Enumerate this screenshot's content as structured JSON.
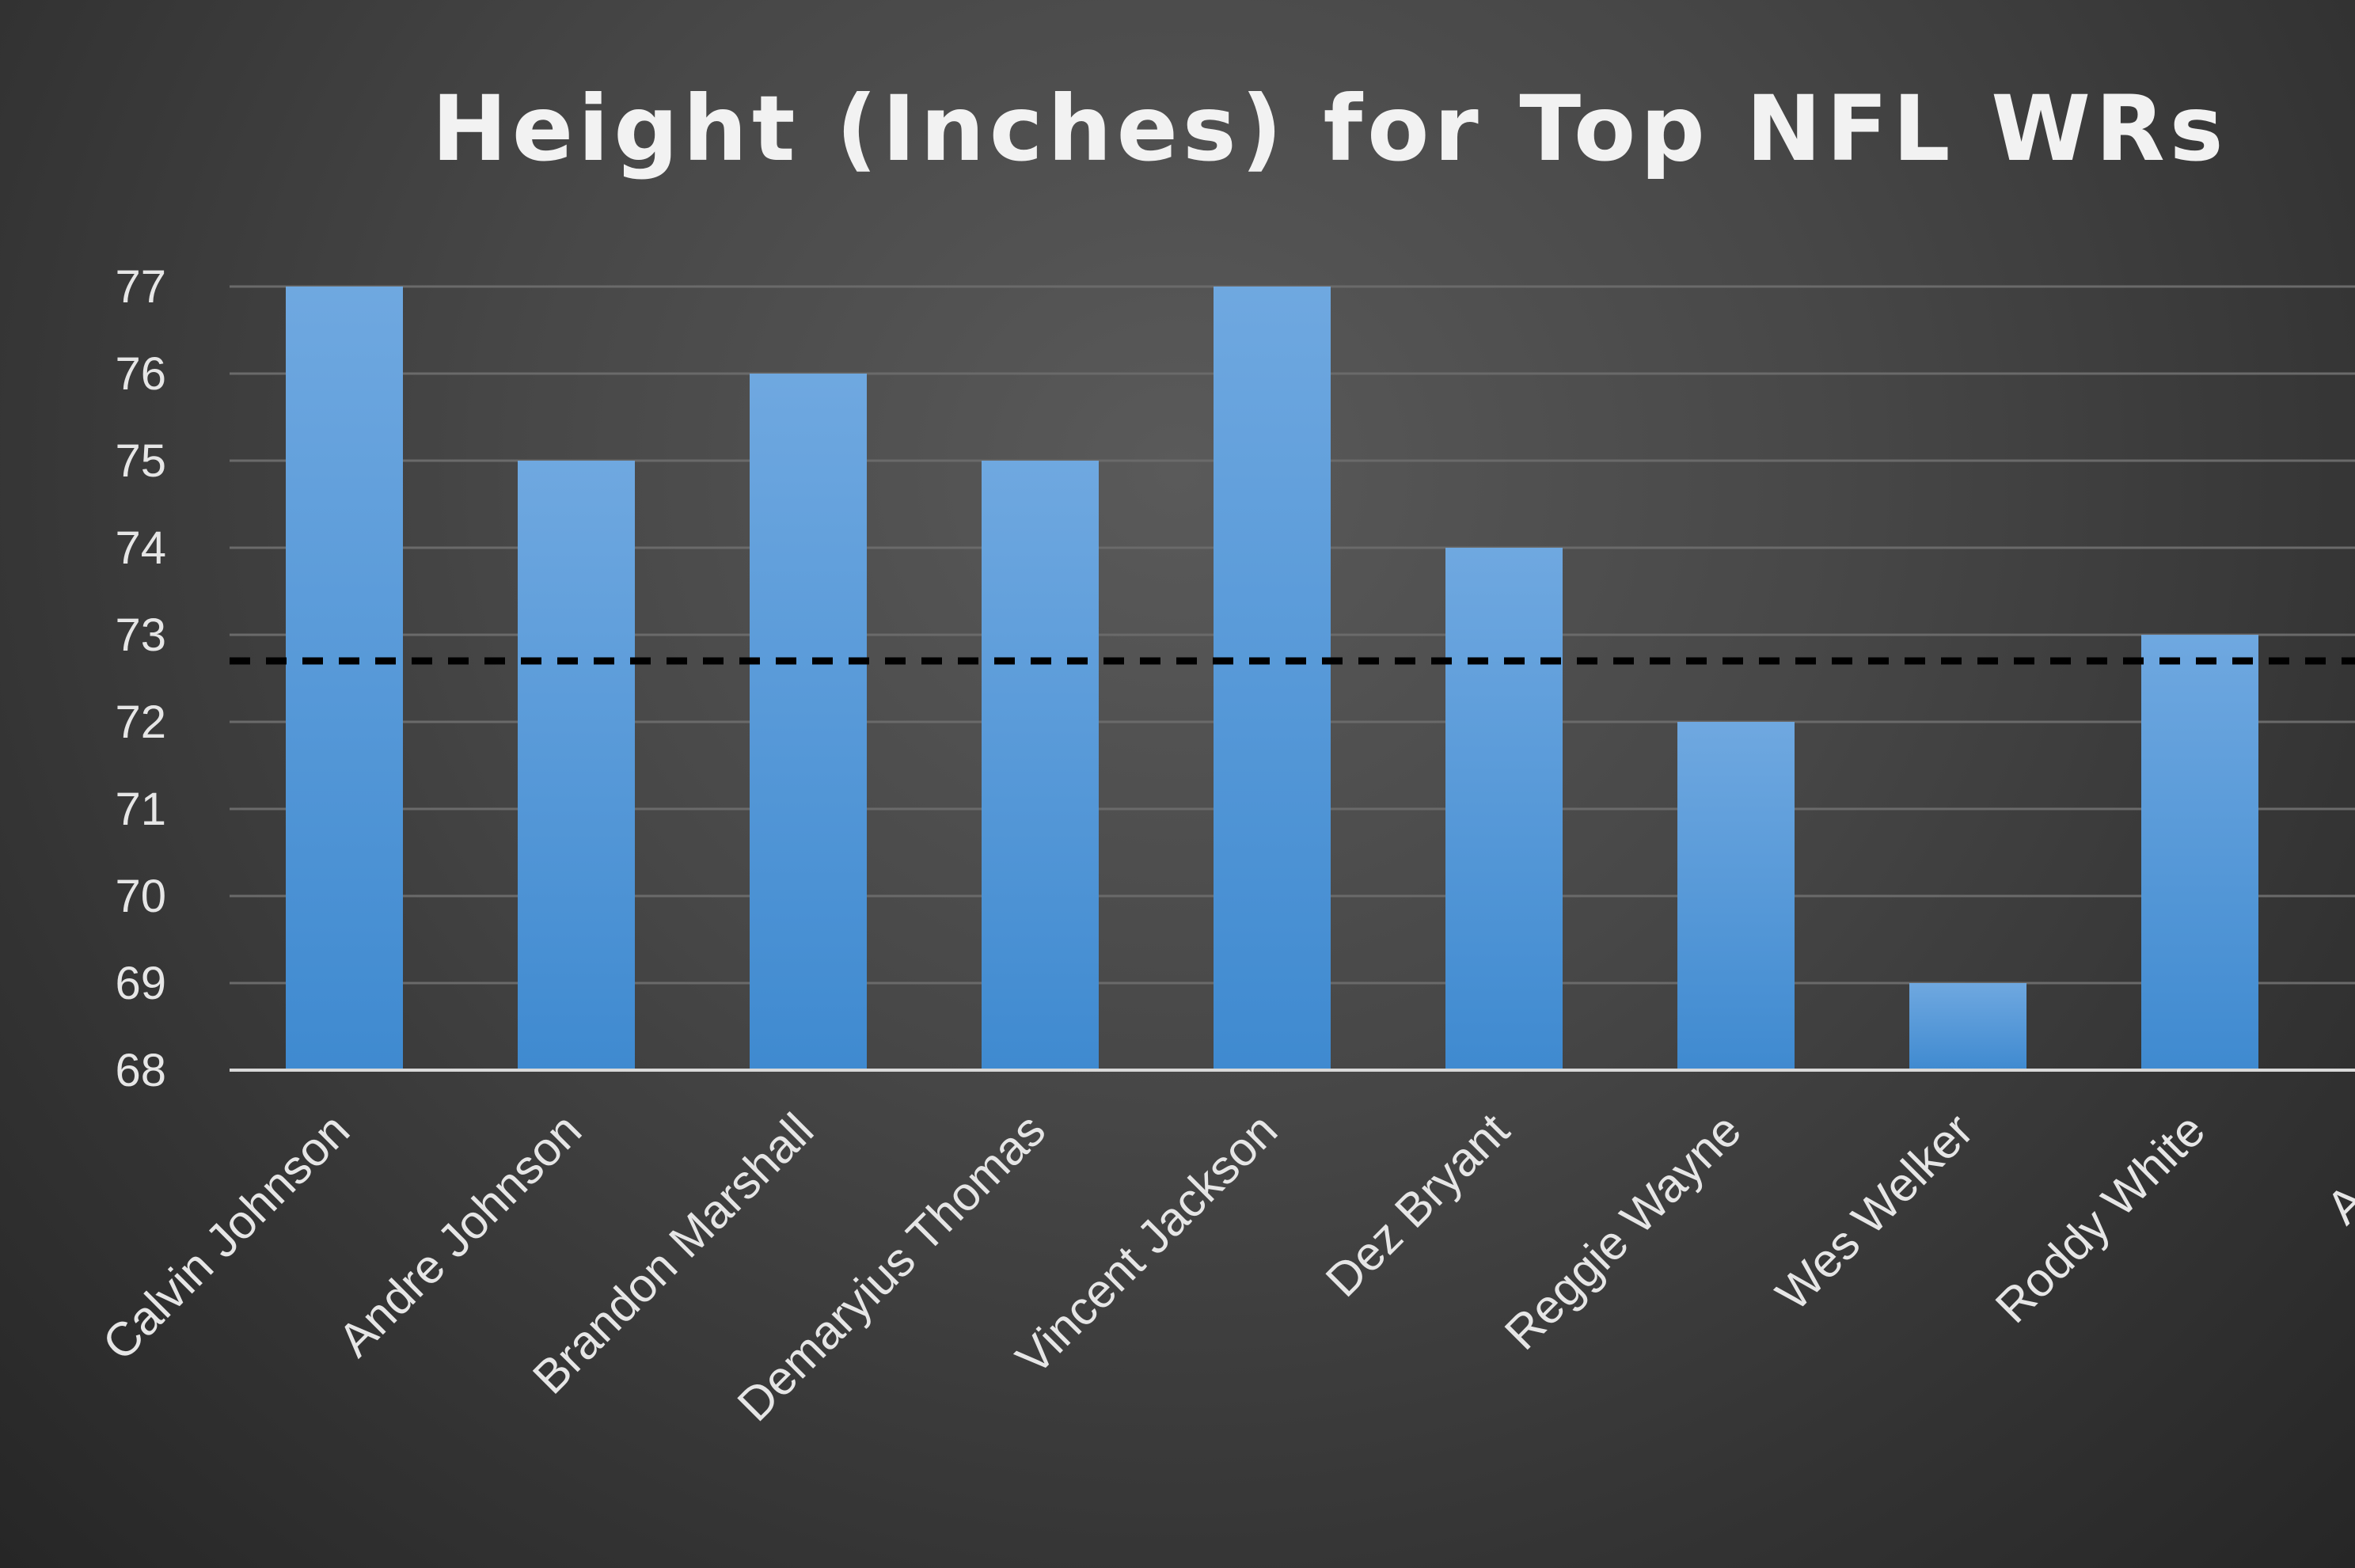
{
  "chart_data": {
    "type": "bar",
    "title": "Height (Inches) for Top NFL WRs",
    "xlabel": "",
    "ylabel": "",
    "categories": [
      "Calvin Johnson",
      "Andre Johnson",
      "Brandon Marshall",
      "Demaryius Thomas",
      "Vincent Jackson",
      "Dez Bryant",
      "Reggie Wayne",
      "Wes Welker",
      "Roddy White",
      "A.J. G"
    ],
    "values": [
      77,
      75,
      76,
      75,
      77,
      74,
      72,
      69,
      73,
      null
    ],
    "ylim": [
      68,
      77
    ],
    "yticks": [
      "68",
      "69",
      "70",
      "71",
      "72",
      "73",
      "74",
      "75",
      "76",
      "77"
    ],
    "reference_line": {
      "value": 72.7,
      "style": "dashed"
    },
    "grid": true,
    "legend": "none",
    "colors": {
      "bar_top": "#6fa8e0",
      "bar_bottom": "#3f8ad0",
      "gridline": "#6a6a6a",
      "axis": "#d9d9d9",
      "reference_line": "#000000"
    }
  }
}
